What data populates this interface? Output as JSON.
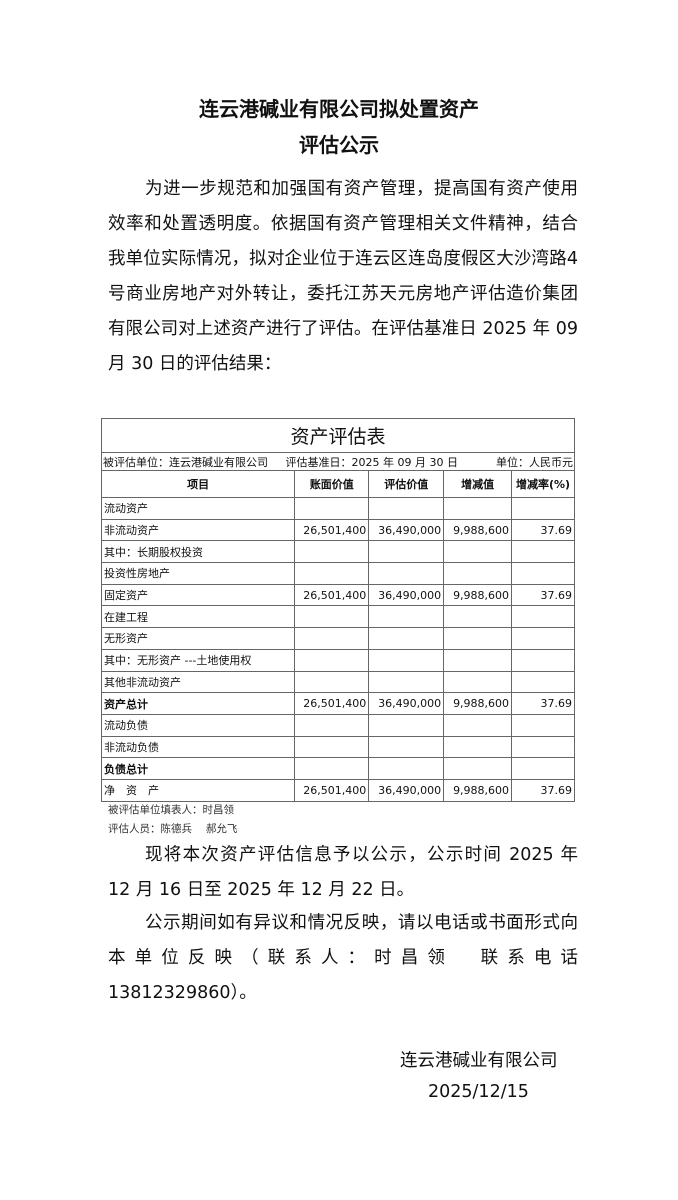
{
  "title": {
    "line1": "连云港碱业有限公司拟处置资产",
    "line2": "评估公示"
  },
  "intro": "为进一步规范和加强国有资产管理，提高国有资产使用效率和处置透明度。依据国有资产管理相关文件精神，结合我单位实际情况，拟对企业位于连云区连岛度假区大沙湾路4号商业房地产对外转让，委托江苏天元房地产评估造价集团有限公司对上述资产进行了评估。在评估基准日 2025 年 09 月 30 日的评估结果：",
  "table": {
    "title": "资产评估表",
    "unit_info": "被评估单位：连云港碱业有限公司",
    "date_info": "评估基准日：2025 年 09 月 30 日",
    "currency": "单位：人民币元",
    "headers": [
      "项目",
      "账面价值",
      "评估价值",
      "增减值",
      "增减率(%)"
    ],
    "rows": [
      [
        "流动资产",
        "",
        "",
        "",
        ""
      ],
      [
        "非流动资产",
        "26,501,400",
        "36,490,000",
        "9,988,600",
        "37.69"
      ],
      [
        "其中：长期股权投资",
        "",
        "",
        "",
        ""
      ],
      [
        "投资性房地产",
        "",
        "",
        "",
        ""
      ],
      [
        "固定资产",
        "26,501,400",
        "36,490,000",
        "9,988,600",
        "37.69"
      ],
      [
        "在建工程",
        "",
        "",
        "",
        ""
      ],
      [
        "无形资产",
        "",
        "",
        "",
        ""
      ],
      [
        "其中：无形资产 ---土地使用权",
        "",
        "",
        "",
        ""
      ],
      [
        "其他非流动资产",
        "",
        "",
        "",
        ""
      ],
      [
        "资产总计",
        "26,501,400",
        "36,490,000",
        "9,988,600",
        "37.69"
      ],
      [
        "流动负债",
        "",
        "",
        "",
        ""
      ],
      [
        "非流动负债",
        "",
        "",
        "",
        ""
      ],
      [
        "负债总计",
        "",
        "",
        "",
        ""
      ],
      [
        "净　资　产",
        "26,501,400",
        "36,490,000",
        "9,988,600",
        "37.69"
      ]
    ],
    "bold_rows": [
      9,
      12
    ],
    "filler": "被评估单位填表人：时昌领",
    "appraisers": "评估人员：陈德兵　 郝允飞"
  },
  "notice1": "现将本次资产评估信息予以公示，公示时间 2025 年 12 月 16 日至 2025 年 12 月 22 日。",
  "notice2": "公示期间如有异议和情况反映，请以电话或书面形式向本单位反映（联系人：时昌领　联系电话　13812329860）。",
  "signature": {
    "company": "连云港碱业有限公司",
    "date": "2025/12/15"
  }
}
